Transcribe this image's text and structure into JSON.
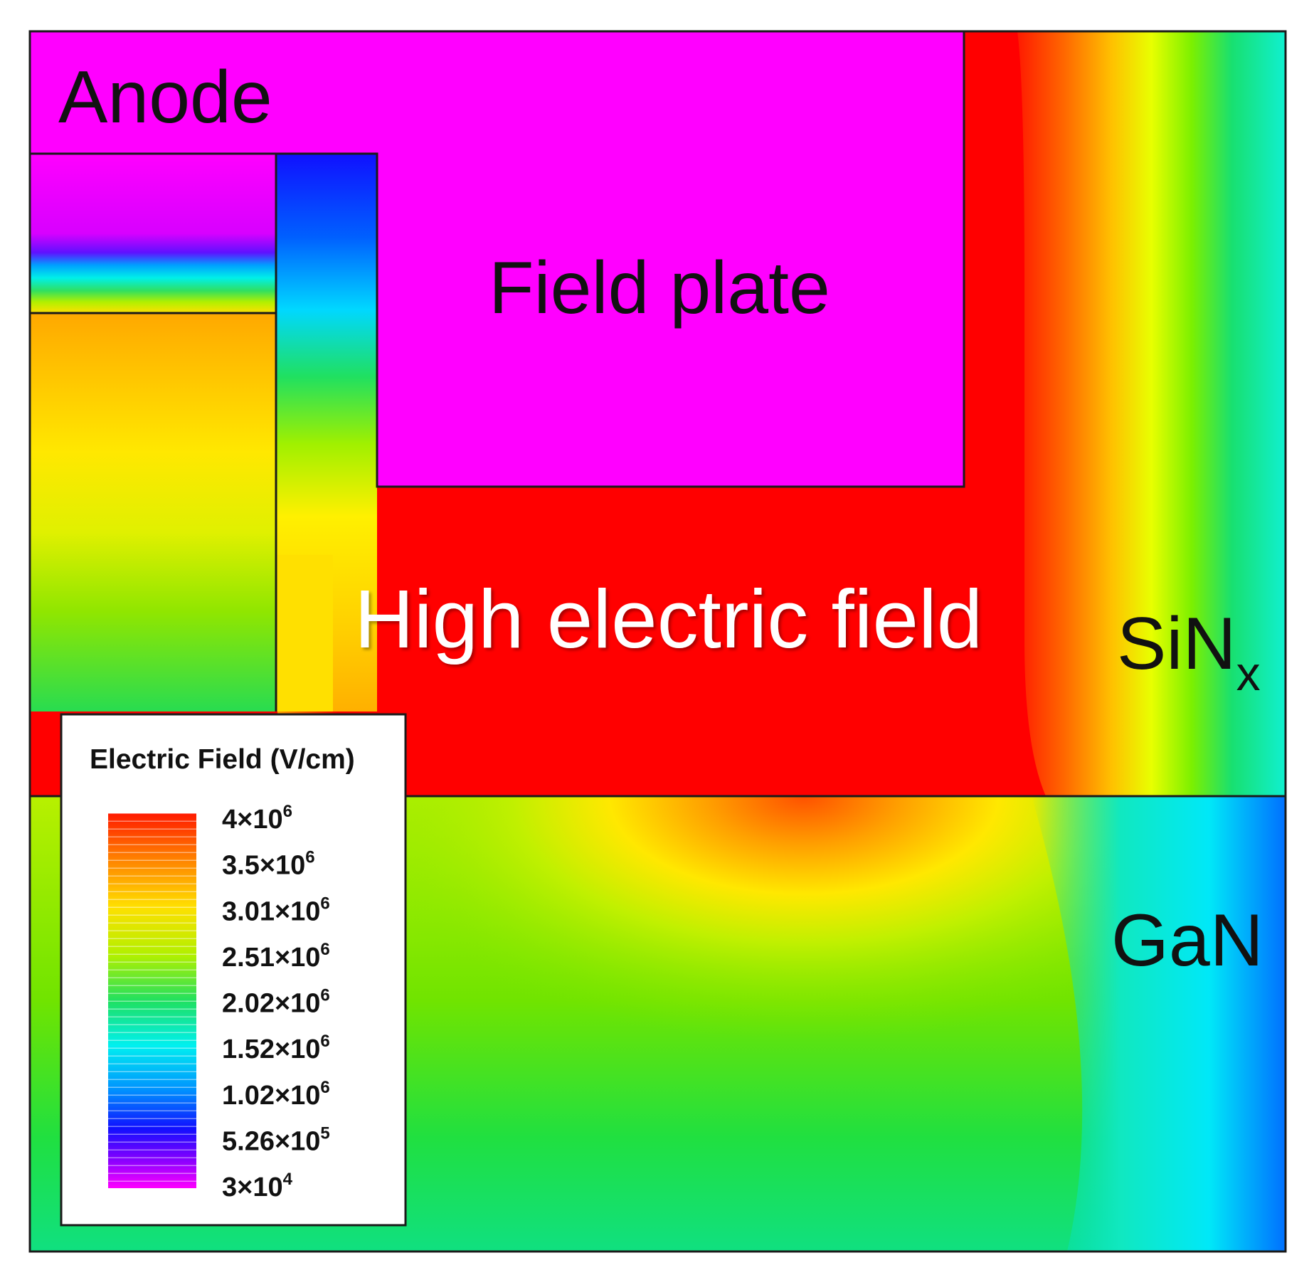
{
  "labels": {
    "anode": "Anode",
    "field_plate": "Field plate",
    "high_field": "High electric field",
    "sinx_main": "SiN",
    "sinx_sub": "x",
    "gan": "GaN"
  },
  "legend": {
    "title": "Electric Field (V/cm)",
    "ticks": [
      {
        "mant": "4×10",
        "exp": "6"
      },
      {
        "mant": "3.5×10",
        "exp": "6"
      },
      {
        "mant": "3.01×10",
        "exp": "6"
      },
      {
        "mant": "2.51×10",
        "exp": "6"
      },
      {
        "mant": "2.02×10",
        "exp": "6"
      },
      {
        "mant": "1.52×10",
        "exp": "6"
      },
      {
        "mant": "1.02×10",
        "exp": "6"
      },
      {
        "mant": "5.26×10",
        "exp": "5"
      },
      {
        "mant": "3×10",
        "exp": "4"
      }
    ]
  },
  "colors": {
    "metal": "#ff00ff",
    "high_field": "#ff0000",
    "high": "#ff8800",
    "mid_high": "#ffff00",
    "mid": "#33ee33",
    "mid_low": "#00ffff",
    "low": "#0055ff",
    "very_low": "#2200ff",
    "minimum": "#ff00ff"
  }
}
